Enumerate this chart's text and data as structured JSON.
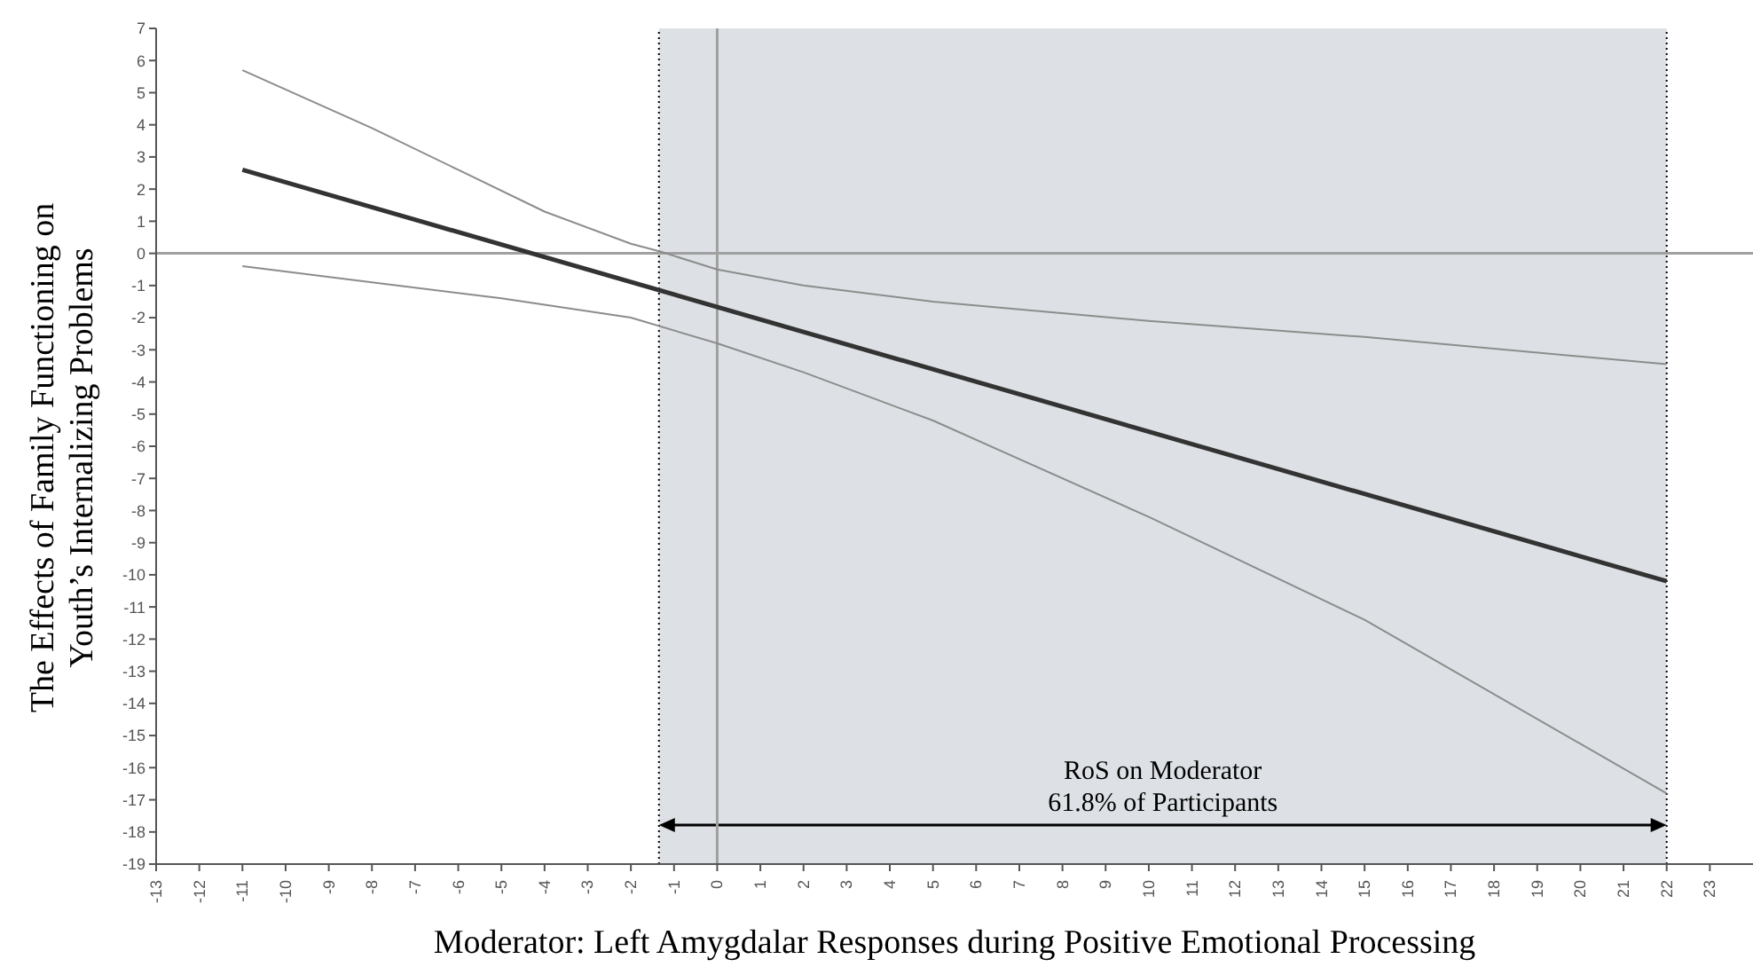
{
  "chart_data": {
    "type": "line",
    "xlabel": "Moderator: Left Amygdalar Responses during Positive Emotional Processing",
    "ylabel": "The Effects of Family Functioning on\nYouth’s Internalizing Problems",
    "xlim": [
      -13,
      24
    ],
    "xticks": [
      -13,
      -12,
      -11,
      -10,
      -9,
      -8,
      -7,
      -6,
      -5,
      -4,
      -3,
      -2,
      -1,
      0,
      1,
      2,
      3,
      4,
      5,
      6,
      7,
      8,
      9,
      10,
      11,
      12,
      13,
      14,
      15,
      16,
      17,
      18,
      19,
      20,
      21,
      22,
      23
    ],
    "ylim": [
      -19,
      7
    ],
    "yticks": [
      -19,
      -18,
      -17,
      -16,
      -15,
      -14,
      -13,
      -12,
      -11,
      -10,
      -9,
      -8,
      -7,
      -6,
      -5,
      -4,
      -3,
      -2,
      -1,
      0,
      1,
      2,
      3,
      4,
      5,
      6,
      7
    ],
    "marker": "none",
    "series": [
      {
        "color": "#333333",
        "x": [
          -11,
          22
        ],
        "values": [
          2.6,
          -10.2
        ]
      },
      {
        "color": "#8c8c8c",
        "x": [
          -11,
          -8,
          -6,
          -4,
          -2,
          -1.3,
          0,
          2,
          5,
          10,
          15,
          22
        ],
        "values": [
          5.7,
          3.9,
          2.6,
          1.3,
          0.3,
          0.05,
          -0.5,
          -1.0,
          -1.5,
          -2.1,
          -2.6,
          -3.45
        ]
      },
      {
        "color": "#8c8c8c",
        "x": [
          -11,
          -8,
          -5,
          -2,
          0,
          2,
          5,
          10,
          15,
          22
        ],
        "values": [
          -0.4,
          -0.9,
          -1.4,
          -2.0,
          -2.8,
          -3.7,
          -5.2,
          -8.2,
          -11.4,
          -16.8
        ]
      }
    ],
    "ref_lines": [
      {
        "axis": "x",
        "value": 0,
        "color": "#a0a0a0"
      },
      {
        "axis": "y",
        "value": 0,
        "color": "#a0a0a0"
      },
      {
        "axis": "x",
        "value": -1.35,
        "color": "#000000",
        "line_style": "dotted"
      },
      {
        "axis": "x",
        "value": 22,
        "color": "#000000",
        "line_style": "dotted"
      }
    ],
    "bands": [
      {
        "axis": "x",
        "from": -1.35,
        "to": 22,
        "color": "#dde1e5"
      }
    ],
    "annotations": [
      "RoS on Moderator\n61.8% of Participants"
    ]
  }
}
